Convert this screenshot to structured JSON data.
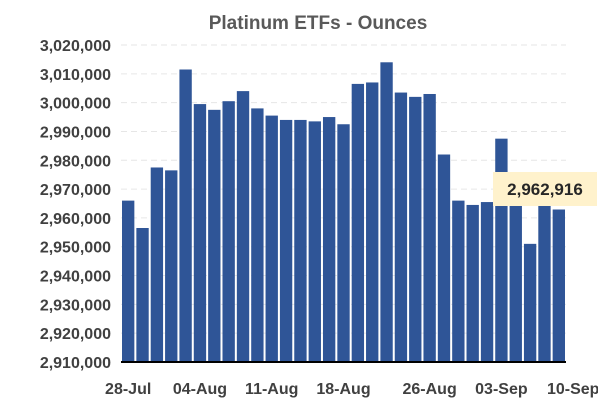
{
  "chart_data": {
    "type": "bar",
    "title": "Platinum ETFs - Ounces",
    "xlabel": "",
    "ylabel": "",
    "ylim": [
      2910000,
      3020000
    ],
    "ytick_step": 10000,
    "yticks": [
      "2,910,000",
      "2,920,000",
      "2,930,000",
      "2,940,000",
      "2,950,000",
      "2,960,000",
      "2,970,000",
      "2,980,000",
      "2,990,000",
      "3,000,000",
      "3,010,000",
      "3,020,000"
    ],
    "x_tick_labels": [
      {
        "label": "28-Jul",
        "index": 0
      },
      {
        "label": "04-Aug",
        "index": 5
      },
      {
        "label": "11-Aug",
        "index": 10
      },
      {
        "label": "18-Aug",
        "index": 15
      },
      {
        "label": "26-Aug",
        "index": 21
      },
      {
        "label": "03-Sep",
        "index": 26
      },
      {
        "label": "10-Sep",
        "index": 31
      }
    ],
    "values": [
      2966000,
      2956500,
      2977500,
      2976500,
      3011500,
      2999500,
      2997500,
      3000500,
      3004000,
      2998000,
      2995500,
      2994000,
      2994000,
      2993500,
      2995000,
      2992500,
      3006500,
      3007000,
      3014000,
      3003500,
      3002000,
      3003000,
      2982000,
      2966000,
      2964500,
      2965500,
      2987500,
      2965500,
      2951000,
      2966000,
      2962916
    ],
    "gridlines": true,
    "bar_color": "#2f5597",
    "callout": {
      "text": "2,962,916",
      "color": "#fff2cc"
    }
  }
}
